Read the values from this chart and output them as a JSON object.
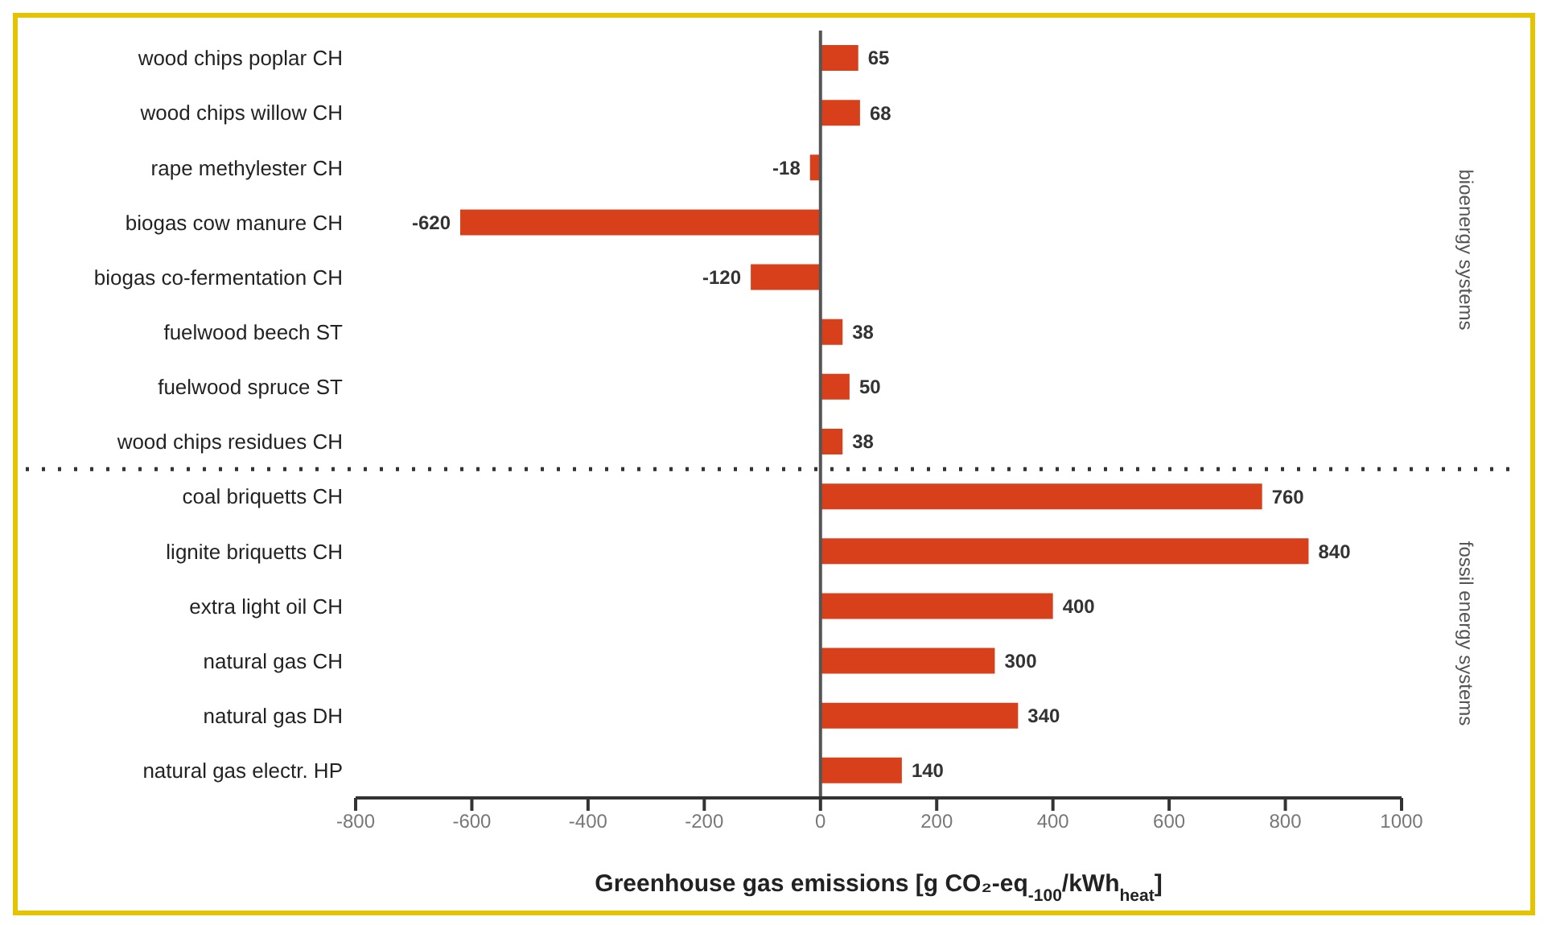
{
  "chart_data": {
    "type": "bar",
    "orientation": "horizontal",
    "categories": [
      "wood chips poplar CH",
      "wood chips willow CH",
      "rape methylester CH",
      "biogas cow manure CH",
      "biogas co-fermentation CH",
      "fuelwood beech ST",
      "fuelwood spruce ST",
      "wood chips residues CH",
      "coal briquetts CH",
      "lignite briquetts CH",
      "extra light oil CH",
      "natural gas CH",
      "natural gas DH",
      "natural gas electr. HP"
    ],
    "values": [
      65,
      68,
      -18,
      -620,
      -120,
      38,
      50,
      38,
      760,
      840,
      400,
      300,
      340,
      140
    ],
    "color": "#d8401c",
    "data_labels": true,
    "xlim": [
      -800,
      1000
    ],
    "xticks": [
      -800,
      -600,
      -400,
      -200,
      0,
      200,
      400,
      600,
      800,
      1000
    ],
    "xlabel": "Greenhouse gas emissions [g CO₂-eq$_{-100}$/kWh$_{heat}$]",
    "annotations": [
      "bioenergy systems",
      "fossil energy systems"
    ],
    "ref_lines": [
      {
        "axis": "y",
        "value": "wood chips residues CH",
        "line_style": "dotted",
        "color": "#333333"
      }
    ],
    "grid": false,
    "legend": false
  }
}
